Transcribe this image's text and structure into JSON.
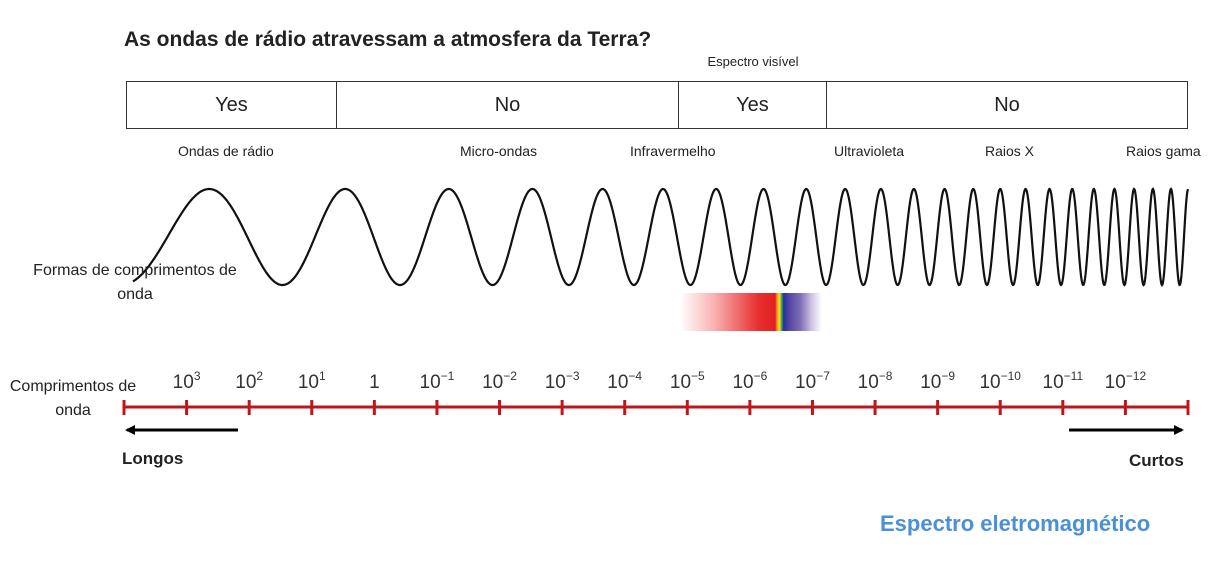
{
  "title": "As ondas de rádio atravessam a atmosfera da Terra?",
  "visible_spectrum_label": "Espectro visível",
  "penetration": [
    {
      "label": "Yes"
    },
    {
      "label": "No"
    },
    {
      "label": "Yes"
    },
    {
      "label": "No"
    }
  ],
  "regions": [
    "Ondas de rádio",
    "Micro-ondas",
    "Infravermelho",
    "Ultravioleta",
    "Raios X",
    "Raios gama"
  ],
  "wave_label": "Formas de comprimentos de onda",
  "axis_label": "Comprimentos de onda",
  "scale_ticks": [
    "10^3",
    "10^2",
    "10^1",
    "1",
    "10^-1",
    "10^-2",
    "10^-3",
    "10^-4",
    "10^-5",
    "10^-6",
    "10^-7",
    "10^-8",
    "10^-9",
    "10^-10",
    "10^-11",
    "10^-12"
  ],
  "direction_long": "Longos",
  "direction_short": "Curtos",
  "footer_title": "Espectro eletromagnético",
  "colors": {
    "axis": "#c0161b",
    "footer": "#4a90d9",
    "arrow": "#000000"
  }
}
